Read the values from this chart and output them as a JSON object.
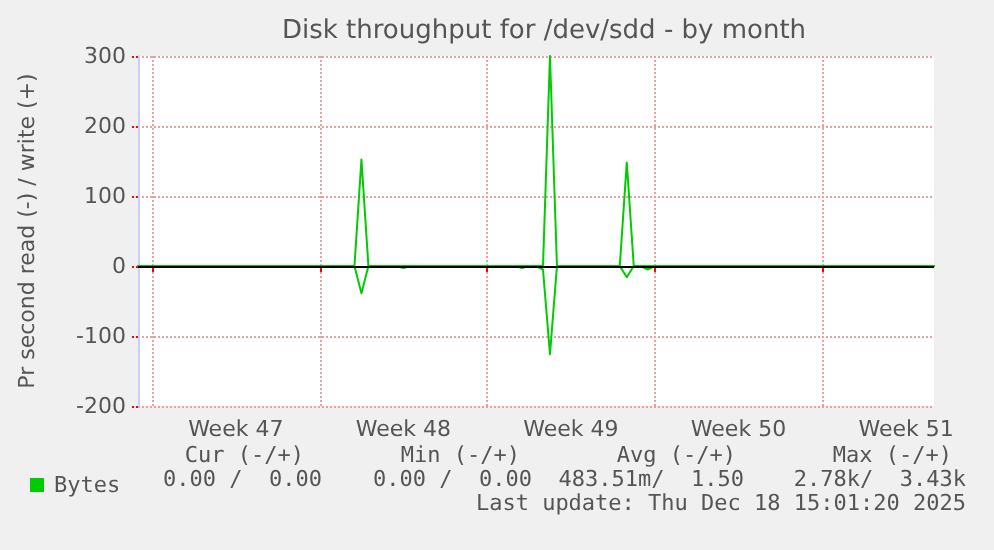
{
  "chart_data": {
    "type": "line",
    "title": "Disk throughput for /dev/sdd - by month",
    "ylabel": "Pr second read (-) / write (+)",
    "categories": [
      null,
      null,
      null,
      null,
      null,
      null,
      null,
      null,
      null,
      null,
      null,
      null,
      null,
      null,
      "Week 47",
      null,
      null,
      null,
      null,
      null,
      null,
      null,
      null,
      null,
      null,
      null,
      null,
      null,
      null,
      null,
      null,
      null,
      null,
      null,
      null,
      null,
      null,
      null,
      "Week 48",
      null,
      null,
      null,
      null,
      null,
      null,
      null,
      null,
      null,
      null,
      null,
      null,
      null,
      null,
      null,
      null,
      null,
      null,
      null,
      null,
      null,
      null,
      null,
      "Week 49",
      null,
      null,
      null,
      null,
      null,
      null,
      null,
      null,
      null,
      null,
      null,
      null,
      null,
      null,
      null,
      null,
      null,
      null,
      null,
      null,
      null,
      null,
      null,
      "Week 50",
      null,
      null,
      null,
      null,
      null,
      null,
      null,
      null,
      null,
      null,
      null,
      null,
      null,
      null,
      null,
      null,
      null,
      null,
      null,
      null,
      null,
      null,
      null,
      "Week 51",
      null,
      null,
      null,
      null
    ],
    "ylim": [
      -200,
      300
    ],
    "yticks": [
      -200,
      -100,
      0,
      100,
      200,
      300
    ],
    "grid": true,
    "legend": "bottom left",
    "marker": "none",
    "line_style": "solid",
    "ref_lines": [
      {
        "axis": "y",
        "value": 0,
        "label": null,
        "color": "#000000"
      }
    ],
    "series": [
      {
        "name": "Bytes",
        "color": "#00cc00",
        "values": [
          0,
          0,
          0,
          0,
          0,
          0,
          0,
          0,
          0,
          0,
          0,
          0,
          0,
          0,
          0,
          0,
          0,
          0,
          0,
          0,
          0,
          0,
          0,
          0,
          0,
          0,
          0,
          0,
          0,
          0,
          0,
          0,
          152,
          0,
          0,
          0,
          0,
          0,
          0,
          0,
          0,
          0,
          0,
          0,
          0,
          0,
          0,
          0,
          0,
          0,
          0,
          0,
          0,
          0,
          0,
          0,
          0,
          0,
          0,
          300,
          0,
          0,
          0,
          0,
          0,
          0,
          0,
          0,
          0,
          0,
          148,
          0,
          0,
          0,
          0,
          0,
          0,
          0,
          0,
          0,
          0,
          0,
          0,
          0,
          0,
          0,
          0,
          0,
          0,
          0,
          0,
          0,
          0,
          0,
          0,
          0,
          0,
          0,
          0,
          0,
          0,
          0,
          0,
          0,
          0,
          0,
          0,
          0,
          0,
          0,
          0,
          0,
          0,
          0,
          0
        ]
      },
      {
        "color": "#00cc00",
        "values": [
          0,
          0,
          0,
          0,
          0,
          0,
          0,
          0,
          0,
          0,
          0,
          0,
          0,
          0,
          0,
          0,
          0,
          0,
          0,
          0,
          0,
          0,
          0,
          0,
          0,
          0,
          0,
          0,
          0,
          0,
          0,
          0,
          -39,
          0,
          0,
          0,
          0,
          0,
          -3,
          0,
          0,
          0,
          0,
          0,
          0,
          0,
          0,
          0,
          0,
          0,
          0,
          0,
          0,
          0,
          0,
          -3,
          0,
          0,
          -5,
          -126,
          0,
          0,
          0,
          0,
          0,
          0,
          0,
          0,
          0,
          0,
          -16,
          0,
          0,
          -5,
          0,
          0,
          0,
          0,
          0,
          0,
          0,
          0,
          0,
          0,
          0,
          0,
          0,
          0,
          0,
          0,
          0,
          0,
          0,
          0,
          0,
          0,
          0,
          0,
          0,
          0,
          0,
          0,
          0,
          0,
          0,
          0,
          0,
          0,
          0,
          0,
          0,
          0,
          0,
          0,
          0
        ]
      }
    ],
    "annotations": [
      "Cur (-/+)",
      "Min (-/+)",
      "Avg (-/+)",
      "Max (-/+)",
      "0.00 /  0.00",
      "0.00 /  0.00",
      "483.51m/  1.50",
      "2.78k/  3.43k",
      "Last update: Thu Dec 18 15:01:20 2025"
    ]
  }
}
